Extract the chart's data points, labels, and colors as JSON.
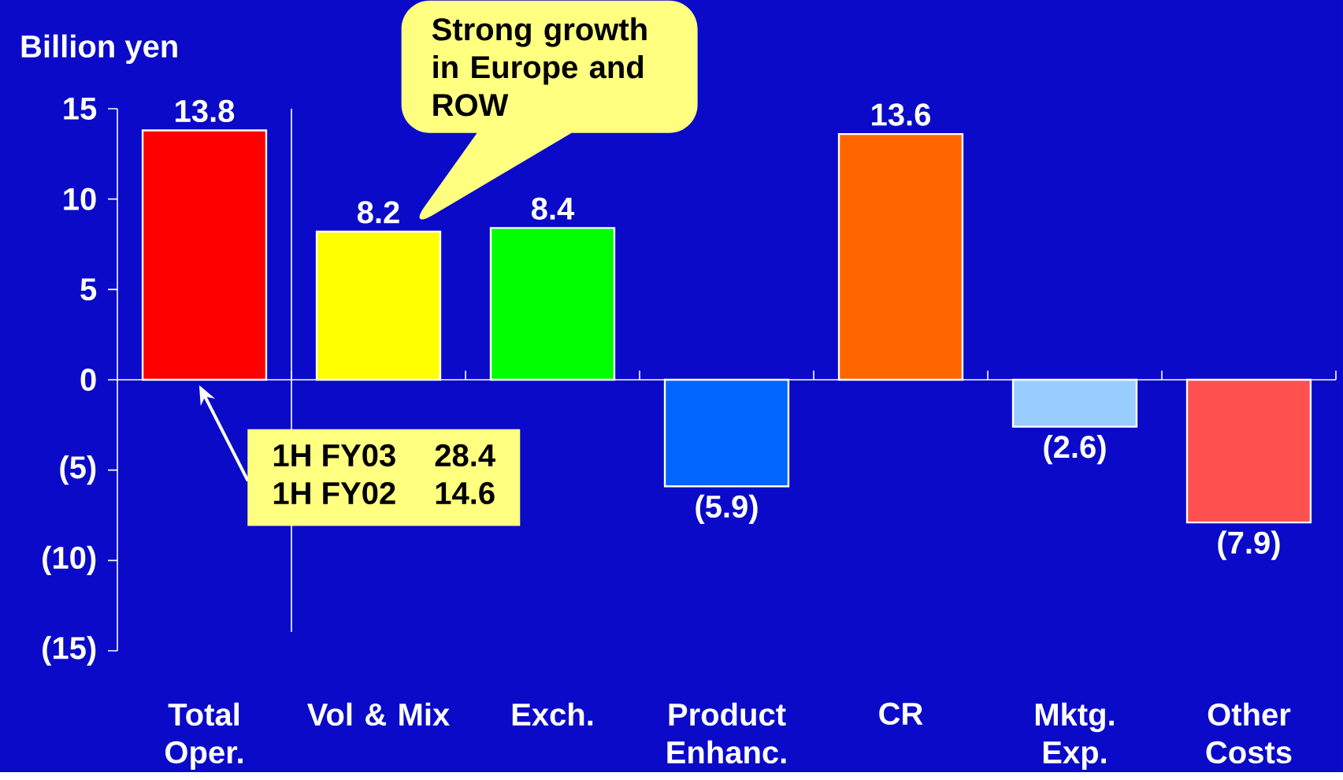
{
  "chart_data": {
    "type": "bar",
    "ylabel": "Billion  yen",
    "categories": [
      "Total Oper.",
      "Vol & Mix",
      "Exch.",
      "Product Enhanc.",
      "CR",
      "Mktg. Exp.",
      "Other Costs"
    ],
    "values": [
      13.8,
      8.2,
      8.4,
      -5.9,
      13.6,
      -2.6,
      -7.9
    ],
    "colors": [
      "#ff0000",
      "#ffff00",
      "#00ff00",
      "#0066ff",
      "#ff6600",
      "#99ccff",
      "#ff5050"
    ],
    "value_labels": [
      "13.8",
      "8.2",
      "8.4",
      "(5.9)",
      "13.6",
      "(2.6)",
      "(7.9)"
    ],
    "ylim": [
      -15,
      15
    ],
    "yticks": [
      {
        "value": -15,
        "label": "(15)"
      },
      {
        "value": -10,
        "label": "(10)"
      },
      {
        "value": -5,
        "label": "(5)"
      },
      0,
      5,
      10,
      15
    ],
    "annotations": [
      "Strong growth in Europe and ROW",
      "1H FY03",
      "28.4",
      "1H FY02",
      "14.6"
    ]
  }
}
